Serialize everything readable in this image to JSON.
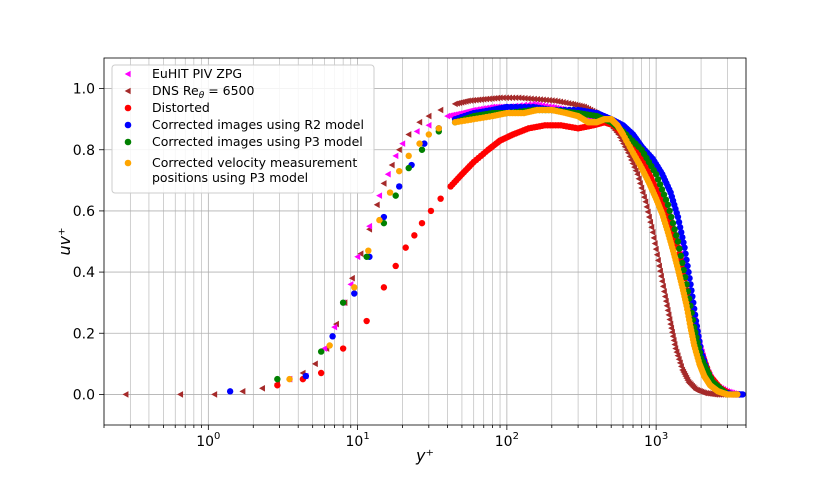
{
  "chart_data": {
    "type": "scatter",
    "xscale": "log",
    "xlim": [
      0.2,
      4000
    ],
    "ylim": [
      -0.1,
      1.1
    ],
    "xlabel": "y⁺",
    "ylabel": "uv⁺",
    "xticks": [
      {
        "value": 1,
        "base": "10",
        "exp": "0"
      },
      {
        "value": 10,
        "base": "10",
        "exp": "1"
      },
      {
        "value": 100,
        "base": "10",
        "exp": "2"
      },
      {
        "value": 1000,
        "base": "10",
        "exp": "3"
      }
    ],
    "yticks": [
      {
        "value": 0.0,
        "label": "0.0"
      },
      {
        "value": 0.2,
        "label": "0.2"
      },
      {
        "value": 0.4,
        "label": "0.4"
      },
      {
        "value": 0.6,
        "label": "0.6"
      },
      {
        "value": 0.8,
        "label": "0.8"
      },
      {
        "value": 1.0,
        "label": "1.0"
      }
    ],
    "grid": true,
    "legend_position": "top-left",
    "series": [
      {
        "name": "EuHIT PIV ZPG",
        "marker": "triangle-left",
        "color": "#ff00ff",
        "points": [
          [
            3.5,
            0.05
          ],
          [
            4.5,
            0.06
          ],
          [
            6,
            0.15
          ],
          [
            7,
            0.22
          ],
          [
            8,
            0.3
          ],
          [
            9,
            0.36
          ],
          [
            10,
            0.45
          ],
          [
            12,
            0.55
          ],
          [
            14,
            0.65
          ],
          [
            16,
            0.72
          ],
          [
            18,
            0.78
          ],
          [
            20,
            0.82
          ],
          [
            25,
            0.86
          ],
          [
            30,
            0.88
          ],
          [
            40,
            0.91
          ],
          [
            50,
            0.92
          ],
          [
            60,
            0.93
          ],
          [
            80,
            0.94
          ],
          [
            100,
            0.94
          ],
          [
            150,
            0.95
          ],
          [
            200,
            0.94
          ],
          [
            250,
            0.93
          ],
          [
            300,
            0.92
          ],
          [
            350,
            0.9
          ],
          [
            400,
            0.9
          ],
          [
            500,
            0.89
          ],
          [
            600,
            0.85
          ],
          [
            700,
            0.8
          ],
          [
            800,
            0.75
          ],
          [
            1000,
            0.68
          ],
          [
            1200,
            0.6
          ],
          [
            1400,
            0.5
          ],
          [
            1600,
            0.38
          ],
          [
            1800,
            0.26
          ],
          [
            2000,
            0.15
          ],
          [
            2200,
            0.08
          ],
          [
            2500,
            0.03
          ],
          [
            3000,
            0.01
          ],
          [
            3500,
            0.0
          ]
        ]
      },
      {
        "name": "DNS Reθ = 6500",
        "label_main": "DNS Re",
        "label_sub": "θ",
        "label_rest": " = 6500",
        "marker": "triangle-left",
        "color": "#a52a2a",
        "points": [
          [
            0.28,
            0.0
          ],
          [
            0.65,
            0.0
          ],
          [
            1.1,
            0.0
          ],
          [
            1.7,
            0.01
          ],
          [
            2.3,
            0.02
          ],
          [
            2.9,
            0.035
          ],
          [
            3.5,
            0.05
          ],
          [
            4.3,
            0.07
          ],
          [
            5.2,
            0.1
          ],
          [
            6.2,
            0.15
          ],
          [
            7.2,
            0.23
          ],
          [
            8.2,
            0.3
          ],
          [
            9.2,
            0.38
          ],
          [
            10.5,
            0.46
          ],
          [
            12,
            0.54
          ],
          [
            13.5,
            0.62
          ],
          [
            15,
            0.69
          ],
          [
            17,
            0.75
          ],
          [
            19,
            0.8
          ],
          [
            22,
            0.85
          ],
          [
            26,
            0.89
          ],
          [
            30,
            0.91
          ],
          [
            36,
            0.93
          ],
          [
            45,
            0.95
          ],
          [
            55,
            0.96
          ],
          [
            70,
            0.965
          ],
          [
            90,
            0.97
          ],
          [
            120,
            0.97
          ],
          [
            160,
            0.965
          ],
          [
            210,
            0.96
          ],
          [
            270,
            0.95
          ],
          [
            330,
            0.94
          ],
          [
            400,
            0.92
          ],
          [
            480,
            0.89
          ],
          [
            560,
            0.85
          ],
          [
            650,
            0.79
          ],
          [
            750,
            0.72
          ],
          [
            850,
            0.63
          ],
          [
            950,
            0.53
          ],
          [
            1050,
            0.42
          ],
          [
            1150,
            0.32
          ],
          [
            1250,
            0.23
          ],
          [
            1350,
            0.15
          ],
          [
            1500,
            0.08
          ],
          [
            1650,
            0.04
          ],
          [
            1850,
            0.015
          ],
          [
            2100,
            0.005
          ],
          [
            2500,
            0.0
          ],
          [
            3000,
            0.0
          ]
        ]
      },
      {
        "name": "Distorted",
        "marker": "circle",
        "color": "#ff0000",
        "points": [
          [
            2.9,
            0.03
          ],
          [
            4.3,
            0.05
          ],
          [
            5.7,
            0.07
          ],
          [
            8,
            0.15
          ],
          [
            11.5,
            0.24
          ],
          [
            15,
            0.35
          ],
          [
            18,
            0.42
          ],
          [
            21,
            0.48
          ],
          [
            24,
            0.52
          ],
          [
            27,
            0.56
          ],
          [
            31,
            0.6
          ],
          [
            36,
            0.64
          ],
          [
            42,
            0.68
          ],
          [
            50,
            0.72
          ],
          [
            60,
            0.76
          ],
          [
            75,
            0.8
          ],
          [
            90,
            0.83
          ],
          [
            110,
            0.85
          ],
          [
            140,
            0.87
          ],
          [
            180,
            0.88
          ],
          [
            230,
            0.88
          ],
          [
            300,
            0.87
          ],
          [
            380,
            0.88
          ],
          [
            450,
            0.89
          ],
          [
            520,
            0.88
          ],
          [
            600,
            0.85
          ],
          [
            700,
            0.82
          ],
          [
            800,
            0.77
          ],
          [
            900,
            0.72
          ],
          [
            1000,
            0.67
          ],
          [
            1100,
            0.62
          ],
          [
            1250,
            0.56
          ],
          [
            1400,
            0.48
          ],
          [
            1600,
            0.36
          ],
          [
            1800,
            0.24
          ],
          [
            2000,
            0.14
          ],
          [
            2300,
            0.06
          ],
          [
            2700,
            0.02
          ],
          [
            3200,
            0.0
          ],
          [
            3600,
            0.0
          ]
        ]
      },
      {
        "name": "Corrected images using R2 model",
        "marker": "circle",
        "color": "#0000ff",
        "points": [
          [
            1.4,
            0.01
          ],
          [
            4.5,
            0.06
          ],
          [
            6.8,
            0.19
          ],
          [
            9.5,
            0.33
          ],
          [
            12,
            0.45
          ],
          [
            15,
            0.58
          ],
          [
            19,
            0.68
          ],
          [
            23,
            0.75
          ],
          [
            28,
            0.82
          ],
          [
            35,
            0.87
          ],
          [
            45,
            0.9
          ],
          [
            60,
            0.92
          ],
          [
            80,
            0.93
          ],
          [
            100,
            0.94
          ],
          [
            150,
            0.94
          ],
          [
            200,
            0.93
          ],
          [
            300,
            0.93
          ],
          [
            400,
            0.92
          ],
          [
            500,
            0.9
          ],
          [
            600,
            0.88
          ],
          [
            700,
            0.85
          ],
          [
            800,
            0.81
          ],
          [
            950,
            0.77
          ],
          [
            1100,
            0.72
          ],
          [
            1250,
            0.66
          ],
          [
            1400,
            0.58
          ],
          [
            1550,
            0.48
          ],
          [
            1700,
            0.36
          ],
          [
            1850,
            0.24
          ],
          [
            2000,
            0.14
          ],
          [
            2300,
            0.05
          ],
          [
            2700,
            0.01
          ],
          [
            3300,
            0.0
          ],
          [
            3800,
            0.0
          ]
        ]
      },
      {
        "name": "Corrected images using P3 model",
        "marker": "circle",
        "color": "#008000",
        "points": [
          [
            2.9,
            0.05
          ],
          [
            5.7,
            0.14
          ],
          [
            8,
            0.3
          ],
          [
            11.5,
            0.45
          ],
          [
            15,
            0.56
          ],
          [
            18,
            0.65
          ],
          [
            22,
            0.74
          ],
          [
            27,
            0.8
          ],
          [
            35,
            0.86
          ],
          [
            45,
            0.89
          ],
          [
            60,
            0.91
          ],
          [
            80,
            0.92
          ],
          [
            100,
            0.92
          ],
          [
            150,
            0.93
          ],
          [
            200,
            0.93
          ],
          [
            300,
            0.92
          ],
          [
            400,
            0.91
          ],
          [
            500,
            0.89
          ],
          [
            600,
            0.86
          ],
          [
            800,
            0.8
          ],
          [
            1000,
            0.72
          ],
          [
            1200,
            0.62
          ],
          [
            1400,
            0.5
          ],
          [
            1600,
            0.36
          ],
          [
            1800,
            0.22
          ],
          [
            2000,
            0.12
          ],
          [
            2400,
            0.04
          ],
          [
            3000,
            0.0
          ]
        ]
      },
      {
        "name": "Corrected velocity measurement positions using P3 model",
        "label_lines": [
          "Corrected velocity measurement",
          " positions using P3 model"
        ],
        "marker": "circle",
        "color": "#ffa500",
        "points": [
          [
            3.5,
            0.05
          ],
          [
            6.5,
            0.16
          ],
          [
            9.5,
            0.35
          ],
          [
            11.8,
            0.47
          ],
          [
            14,
            0.57
          ],
          [
            16.5,
            0.66
          ],
          [
            19,
            0.73
          ],
          [
            22,
            0.78
          ],
          [
            26,
            0.82
          ],
          [
            30,
            0.85
          ],
          [
            35,
            0.87
          ],
          [
            45,
            0.89
          ],
          [
            60,
            0.9
          ],
          [
            80,
            0.91
          ],
          [
            100,
            0.92
          ],
          [
            130,
            0.92
          ],
          [
            160,
            0.93
          ],
          [
            200,
            0.93
          ],
          [
            250,
            0.92
          ],
          [
            300,
            0.91
          ],
          [
            350,
            0.89
          ],
          [
            400,
            0.89
          ],
          [
            450,
            0.9
          ],
          [
            500,
            0.9
          ],
          [
            550,
            0.88
          ],
          [
            600,
            0.85
          ],
          [
            700,
            0.79
          ],
          [
            800,
            0.74
          ],
          [
            900,
            0.69
          ],
          [
            1000,
            0.64
          ],
          [
            1100,
            0.59
          ],
          [
            1200,
            0.53
          ],
          [
            1300,
            0.47
          ],
          [
            1400,
            0.41
          ],
          [
            1500,
            0.35
          ],
          [
            1600,
            0.29
          ],
          [
            1700,
            0.22
          ],
          [
            1800,
            0.16
          ],
          [
            1950,
            0.1
          ],
          [
            2100,
            0.06
          ],
          [
            2300,
            0.03
          ],
          [
            2600,
            0.01
          ],
          [
            3000,
            0.0
          ],
          [
            3500,
            0.0
          ]
        ]
      }
    ]
  }
}
